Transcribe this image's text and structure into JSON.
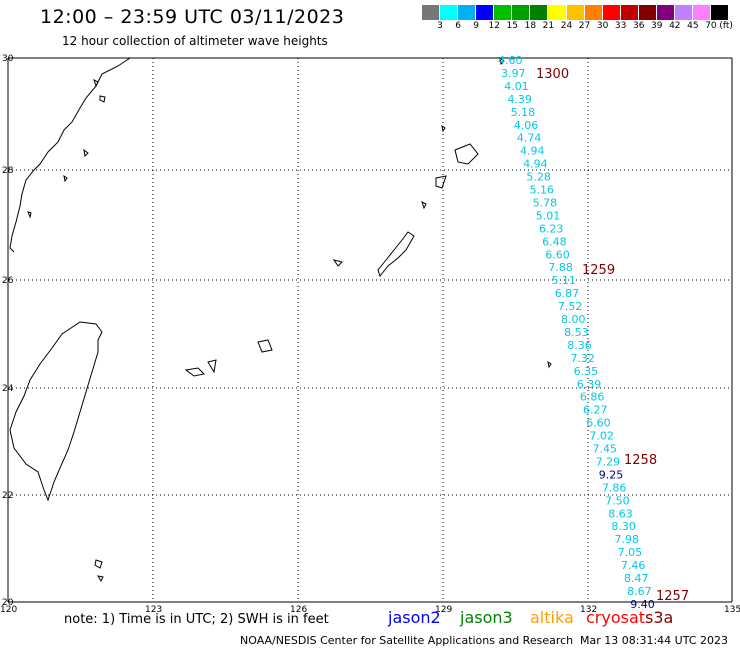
{
  "header": {
    "title": "12:00 – 23:59 UTC 03/11/2023",
    "subtitle": "12 hour collection of altimeter wave heights"
  },
  "scale": {
    "labels": [
      "3",
      "6",
      "9",
      "12",
      "15",
      "18",
      "21",
      "24",
      "27",
      "30",
      "33",
      "36",
      "39",
      "42",
      "45",
      "70",
      "(ft)"
    ],
    "colors": [
      "#777777",
      "#00ffff",
      "#00b0f0",
      "#0000ff",
      "#00c000",
      "#00a000",
      "#008000",
      "#ffff00",
      "#ffc000",
      "#ff8000",
      "#ff0000",
      "#c00000",
      "#800000",
      "#800080",
      "#c080ff",
      "#ff80ff",
      "#000000"
    ]
  },
  "axes": {
    "lon_labels": [
      "120",
      "123",
      "126",
      "129",
      "132",
      "135"
    ],
    "lat_labels": [
      "30",
      "28",
      "26",
      "24",
      "22",
      "20"
    ]
  },
  "track": {
    "color": "#00c8e8",
    "dark_color": "#000080",
    "values": [
      "4.60",
      "3.97",
      "4.01",
      "4.39",
      "5.18",
      "4.06",
      "4.74",
      "4.94",
      "4.94",
      "5.28",
      "5.16",
      "5.78",
      "5.01",
      "6.23",
      "6.48",
      "6.60",
      "7.88",
      "5.11",
      "6.87",
      "7.52",
      "8.00",
      "8.53",
      "8.36",
      "7.32",
      "6.35",
      "6.39",
      "6.86",
      "6.27",
      "6.60",
      "7.02",
      "7.45",
      "7.29",
      "9.25",
      "7.86",
      "7.50",
      "8.63",
      "8.30",
      "7.98",
      "7.05",
      "7.46",
      "8.47",
      "8.67",
      "9.40"
    ],
    "dark_indices": [
      32,
      42
    ],
    "time_labels": [
      "1300",
      "1259",
      "1258",
      "1257"
    ],
    "time_color": "#800000"
  },
  "footer": {
    "note": "note: 1) Time is in UTC; 2) SWH is in feet",
    "satellites": [
      {
        "name": "jason2",
        "color": "#0000ff"
      },
      {
        "name": "jason3",
        "color": "#008000"
      },
      {
        "name": "altika",
        "color": "#ffa000"
      },
      {
        "name": "cryosat",
        "color": "#ff0000"
      },
      {
        "name": "s3a",
        "color": "#800000"
      }
    ],
    "credit": "NOAA/NESDIS Center for Satellite Applications and Research",
    "timestamp": "Mar 13 08:31:44 UTC 2023"
  }
}
